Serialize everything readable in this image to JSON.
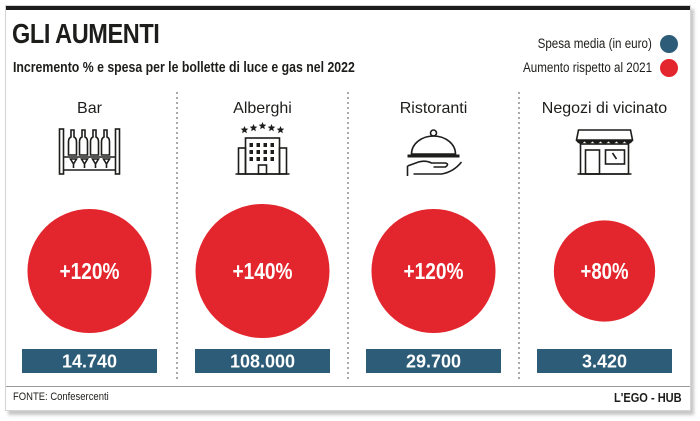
{
  "header": {
    "title": "GLI AUMENTI",
    "subtitle": "Incremento % e spesa per le bollette di luce e gas nel 2022"
  },
  "legend": [
    {
      "label": "Spesa media (in euro)",
      "color": "#2d5c78"
    },
    {
      "label": "Aumento rispetto al 2021",
      "color": "#e3262d"
    }
  ],
  "chart_data": {
    "type": "bubble",
    "title": "GLI AUMENTI",
    "subtitle": "Incremento % e spesa per le bollette di luce e gas nel 2022",
    "categories": [
      "Bar",
      "Alberghi",
      "Ristoranti",
      "Negozi di vicinato"
    ],
    "icons": [
      "bottle-shelf-icon",
      "hotel-icon",
      "serving-cloche-icon",
      "shop-icon"
    ],
    "series": [
      {
        "name": "Aumento rispetto al 2021",
        "unit": "%",
        "values": [
          120,
          140,
          120,
          80
        ],
        "labels": [
          "+120%",
          "+140%",
          "+120%",
          "+80%"
        ],
        "color": "#e3262d"
      },
      {
        "name": "Spesa media (in euro)",
        "unit": "EUR",
        "values": [
          14740,
          108000,
          29700,
          3420
        ],
        "labels": [
          "14.740",
          "108.000",
          "29.700",
          "3.420"
        ],
        "color": "#2d5c78"
      }
    ]
  },
  "footer": {
    "source": "FONTE: Confesercenti",
    "brand": "L'EGO - HUB"
  }
}
